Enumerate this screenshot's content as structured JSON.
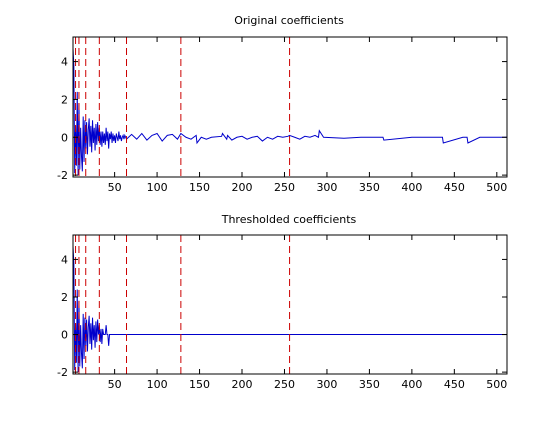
{
  "chart_data": [
    {
      "type": "line",
      "title": "Original coefficients",
      "xlabel": "",
      "ylabel": "",
      "xlim": [
        1,
        512
      ],
      "ylim": [
        -2.1,
        5.3
      ],
      "xticks": [
        50,
        100,
        150,
        200,
        250,
        300,
        350,
        400,
        450,
        500
      ],
      "yticks": [
        -2,
        0,
        2,
        4
      ],
      "grid": false,
      "legend": "none",
      "series_color": "#0000cc",
      "vlines": {
        "x": [
          4,
          8,
          16,
          32,
          64,
          128,
          256
        ],
        "color": "#cc0000",
        "style": "dashed"
      },
      "series": [
        {
          "x": [
            1,
            2,
            3,
            4,
            5,
            6,
            7,
            8,
            9,
            10,
            11,
            12,
            13,
            14,
            15,
            16,
            17,
            18,
            19,
            20,
            21,
            22,
            23,
            24,
            25,
            26,
            27,
            28,
            29,
            30,
            31,
            32,
            33,
            34,
            35,
            36,
            37,
            38,
            39,
            40,
            41,
            42,
            43,
            44,
            45,
            46,
            47,
            48,
            49,
            50,
            51,
            52,
            53,
            54,
            55,
            56,
            57,
            58,
            59,
            60,
            61,
            62,
            63,
            64,
            70,
            76,
            82,
            88,
            94,
            100,
            106,
            112,
            118,
            124,
            128,
            134,
            140,
            146,
            147,
            152,
            158,
            164,
            176,
            177,
            182,
            183,
            188,
            194,
            200,
            206,
            212,
            218,
            224,
            230,
            236,
            242,
            248,
            254,
            256,
            262,
            268,
            274,
            280,
            286,
            290,
            291,
            296,
            320,
            340,
            366,
            367,
            400,
            436,
            437,
            460,
            465,
            466,
            480,
            512
          ],
          "values": [
            4.7,
            3.8,
            -1.9,
            0.6,
            -1.5,
            2.4,
            -2.0,
            1.8,
            -1.7,
            0.5,
            -1.0,
            -1.8,
            1.1,
            -1.3,
            0.9,
            -0.6,
            0.8,
            -0.9,
            0.4,
            1.0,
            -0.5,
            0.6,
            -0.8,
            0.9,
            -0.3,
            0.5,
            -0.7,
            0.7,
            -0.4,
            0.8,
            -0.2,
            0.5,
            -0.4,
            0.3,
            -0.5,
            0.3,
            -0.3,
            0.2,
            -0.4,
            0.5,
            -0.2,
            0.3,
            -0.6,
            0.2,
            -0.1,
            0.3,
            -0.3,
            0.2,
            -0.2,
            0.1,
            -0.3,
            0.2,
            0.0,
            -0.2,
            0.3,
            -0.1,
            0.1,
            -0.2,
            0.0,
            0.1,
            -0.1,
            0.1,
            0.0,
            -0.1,
            0.15,
            -0.1,
            0.2,
            -0.15,
            0.1,
            0.2,
            -0.2,
            0.1,
            0.15,
            -0.1,
            0.2,
            0.0,
            -0.1,
            0.1,
            -0.3,
            0.0,
            -0.1,
            0.0,
            0.05,
            0.2,
            -0.1,
            0.1,
            -0.15,
            0.0,
            0.05,
            -0.1,
            0.0,
            0.05,
            -0.2,
            0.0,
            -0.1,
            0.05,
            0.0,
            0.05,
            0.1,
            0.0,
            -0.1,
            0.05,
            0.0,
            0.1,
            0.0,
            0.35,
            0.0,
            -0.05,
            0.0,
            0.0,
            -0.15,
            0.0,
            0.0,
            -0.3,
            0.0,
            0.0,
            -0.3,
            0.0,
            0.0
          ]
        }
      ]
    },
    {
      "type": "line",
      "title": "Thresholded coefficients",
      "xlabel": "",
      "ylabel": "",
      "xlim": [
        1,
        512
      ],
      "ylim": [
        -2.1,
        5.3
      ],
      "xticks": [
        50,
        100,
        150,
        200,
        250,
        300,
        350,
        400,
        450,
        500
      ],
      "yticks": [
        -2,
        0,
        2,
        4
      ],
      "grid": false,
      "legend": "none",
      "series_color": "#0000cc",
      "vlines": {
        "x": [
          4,
          8,
          16,
          32,
          64,
          128,
          256
        ],
        "color": "#cc0000",
        "style": "dashed"
      },
      "series": [
        {
          "x": [
            1,
            2,
            3,
            4,
            5,
            6,
            7,
            8,
            9,
            10,
            11,
            12,
            13,
            14,
            15,
            16,
            17,
            18,
            19,
            20,
            21,
            22,
            23,
            24,
            25,
            26,
            27,
            28,
            29,
            30,
            31,
            32,
            33,
            34,
            35,
            36,
            37,
            38,
            39,
            40,
            41,
            42,
            43,
            44,
            45,
            46,
            47,
            48,
            49,
            50,
            512
          ],
          "values": [
            4.7,
            3.8,
            -1.9,
            0.6,
            -1.5,
            2.4,
            -2.0,
            1.8,
            -1.7,
            0.5,
            -1.0,
            -1.8,
            1.1,
            -1.3,
            0.9,
            -0.6,
            0.8,
            -0.9,
            0.4,
            1.0,
            -0.5,
            0.6,
            -0.8,
            0.9,
            -0.3,
            0.5,
            -0.7,
            0.7,
            -0.4,
            0.8,
            0.0,
            0.5,
            -0.4,
            0.3,
            -0.5,
            0.3,
            0.0,
            0.0,
            0.0,
            0.5,
            0.0,
            0.0,
            -0.6,
            0.0,
            0.0,
            0.0,
            0.0,
            0.0,
            0.0,
            0.0,
            0.0
          ]
        }
      ]
    }
  ]
}
